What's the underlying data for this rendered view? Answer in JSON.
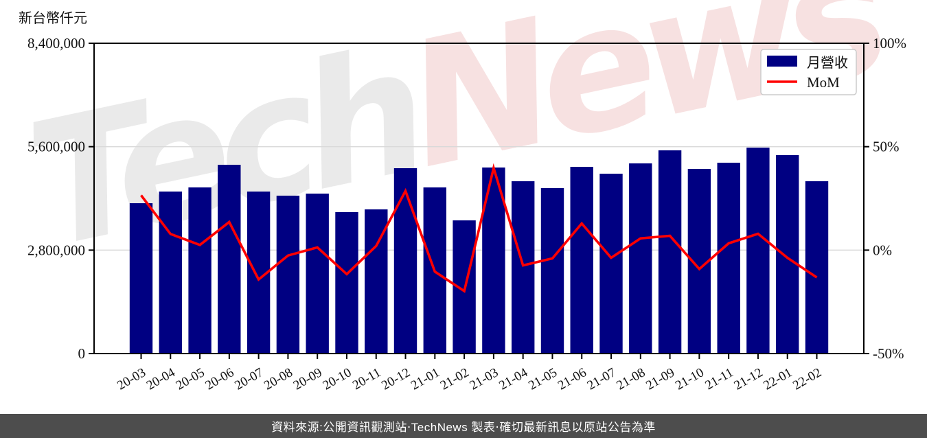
{
  "header": {
    "unit_label": "新台幣仟元"
  },
  "watermark": {
    "part1": "Tech",
    "part2": "News"
  },
  "footer": {
    "text": "資料來源:公開資訊觀測站‧TechNews 製表‧確切最新訊息以原站公告為準"
  },
  "chart_data": {
    "type": "bar",
    "title": "",
    "categories": [
      "20-03",
      "20-04",
      "20-05",
      "20-06",
      "20-07",
      "20-08",
      "20-09",
      "20-10",
      "20-11",
      "20-12",
      "21-01",
      "21-02",
      "21-03",
      "21-04",
      "21-05",
      "21-06",
      "21-07",
      "21-08",
      "21-09",
      "21-10",
      "21-11",
      "21-12",
      "22-01",
      "22-02"
    ],
    "series": [
      {
        "name": "月營收",
        "type": "bar",
        "axis": "left",
        "color": "#000082",
        "values": [
          4070000,
          4386000,
          4497000,
          5110000,
          4386000,
          4274000,
          4330000,
          3828000,
          3903000,
          5018000,
          4497000,
          3605000,
          5036000,
          4665000,
          4479000,
          5055000,
          4869000,
          5148000,
          5501000,
          4999000,
          5166000,
          5575000,
          5371000,
          4665000
        ]
      },
      {
        "name": "MoM",
        "type": "line",
        "axis": "right",
        "color": "#ff0000",
        "values": [
          26.5,
          7.8,
          2.5,
          13.6,
          -14.2,
          -2.6,
          1.3,
          -11.6,
          2.0,
          28.6,
          -10.4,
          -19.8,
          39.7,
          -7.4,
          -4.0,
          12.9,
          -3.7,
          5.7,
          6.9,
          -9.1,
          3.3,
          7.9,
          -3.7,
          -13.2
        ]
      }
    ],
    "left_axis": {
      "label": "新台幣仟元",
      "range": [
        0,
        8400000
      ],
      "ticks": [
        {
          "v": 0,
          "label": "0"
        },
        {
          "v": 2800000,
          "label": "2,800,000"
        },
        {
          "v": 5600000,
          "label": "5,600,000"
        },
        {
          "v": 8400000,
          "label": "8,400,000"
        }
      ]
    },
    "right_axis": {
      "range": [
        -50,
        100
      ],
      "ticks": [
        {
          "v": -50,
          "label": "-50%"
        },
        {
          "v": 0,
          "label": "0%"
        },
        {
          "v": 50,
          "label": "50%"
        },
        {
          "v": 100,
          "label": "100%"
        }
      ]
    },
    "legend": {
      "position": "top-right",
      "items": [
        "月營收",
        "MoM"
      ]
    },
    "grid": "horizontal",
    "grid_color": "#d9d9d9",
    "spine_color": "#000000"
  }
}
